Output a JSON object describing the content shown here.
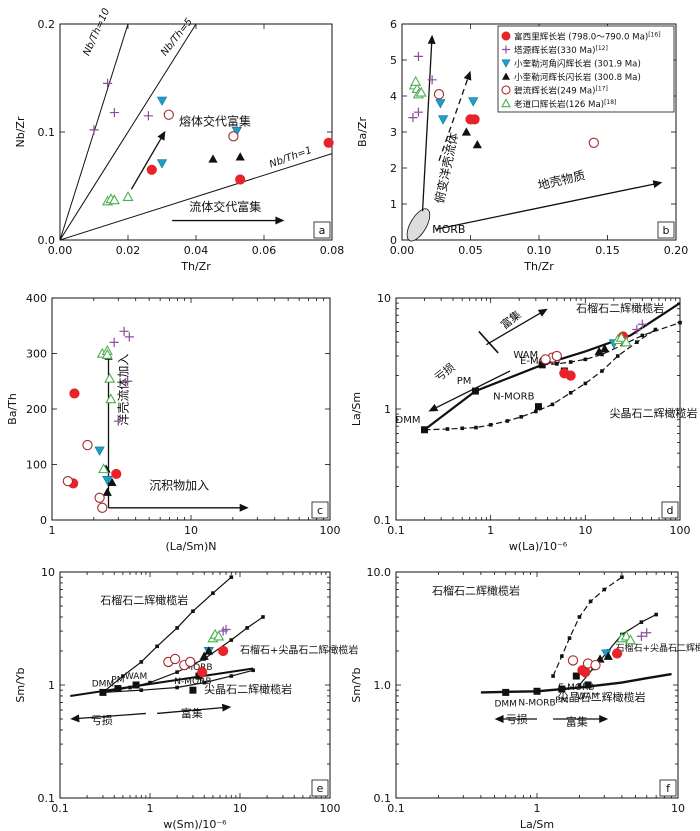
{
  "legend": [
    {
      "key": "fuxili",
      "label": "富西里辉长岩 (798.0～790.0 Ma)",
      "ref": "[16]",
      "marker": "circle-filled",
      "color": "#e8232a"
    },
    {
      "key": "tayuan",
      "label": "塔源辉长岩(330 Ma)",
      "ref": "[12]",
      "marker": "plus",
      "color": "#8a4f9e"
    },
    {
      "key": "xkle_horn",
      "label": "小奎勒河角闪辉长岩 (301.9 Ma)",
      "ref": "",
      "marker": "tri-down",
      "color": "#1ba1c9"
    },
    {
      "key": "xkle_gab",
      "label": "小奎勒河辉长闪长岩 (300.8 Ma)",
      "ref": "",
      "marker": "tri-up",
      "color": "#111111"
    },
    {
      "key": "biliu",
      "label": "碧流辉长岩(249 Ma)",
      "ref": "[17]",
      "marker": "circle-open",
      "color": "#a52a2a"
    },
    {
      "key": "laodao",
      "label": "老道口辉长岩(126 Ma)",
      "ref": "[18]",
      "marker": "tri-up-open",
      "color": "#4caf50"
    }
  ],
  "chart_data": [
    {
      "id": "a",
      "panel_label": "a",
      "type": "scatter",
      "xlabel": "Th/Zr",
      "ylabel": "Nb/Zr",
      "xlim": [
        0,
        0.08
      ],
      "ylim": [
        0,
        0.2
      ],
      "xticks": [
        "0.00",
        "0.02",
        "0.04",
        "0.06",
        "0.08"
      ],
      "yticks": [
        "0.0",
        "0.1",
        "0.2"
      ],
      "lines": [
        {
          "label": "Nb/Th=10",
          "slope": 10
        },
        {
          "label": "Nb/Th=5",
          "slope": 5
        },
        {
          "label": "Nb/Th=1",
          "slope": 1
        }
      ],
      "annotations": [
        {
          "text": "熔体交代富集"
        },
        {
          "text": "流体交代富集"
        }
      ],
      "points": {
        "fuxili": [
          [
            0.027,
            0.065
          ],
          [
            0.053,
            0.056
          ],
          [
            0.079,
            0.09
          ]
        ],
        "tayuan": [
          [
            0.01,
            0.102
          ],
          [
            0.014,
            0.145
          ],
          [
            0.016,
            0.118
          ],
          [
            0.026,
            0.115
          ]
        ],
        "xkle_horn": [
          [
            0.03,
            0.129
          ],
          [
            0.03,
            0.071
          ],
          [
            0.052,
            0.101
          ]
        ],
        "xkle_gab": [
          [
            0.045,
            0.075
          ],
          [
            0.053,
            0.077
          ]
        ],
        "biliu": [
          [
            0.032,
            0.116
          ],
          [
            0.051,
            0.096
          ]
        ],
        "laodao": [
          [
            0.014,
            0.036
          ],
          [
            0.015,
            0.038
          ],
          [
            0.016,
            0.037
          ],
          [
            0.02,
            0.04
          ]
        ]
      }
    },
    {
      "id": "b",
      "panel_label": "b",
      "type": "scatter",
      "xlabel": "Th/Zr",
      "ylabel": "Ba/Zr",
      "xlim": [
        0,
        0.2
      ],
      "ylim": [
        0,
        6
      ],
      "xticks": [
        "0.00",
        "0.05",
        "0.10",
        "0.15",
        "0.20"
      ],
      "yticks": [
        "0",
        "1",
        "2",
        "3",
        "4",
        "5",
        "6"
      ],
      "annotations": [
        {
          "text": "俯变洋壳流体"
        },
        {
          "text": "地壳物质"
        },
        {
          "text": "MORB"
        }
      ],
      "points": {
        "fuxili": [
          [
            0.05,
            3.35
          ],
          [
            0.053,
            3.35
          ]
        ],
        "tayuan": [
          [
            0.012,
            5.1
          ],
          [
            0.022,
            4.45
          ],
          [
            0.008,
            3.4
          ],
          [
            0.012,
            3.55
          ]
        ],
        "xkle_horn": [
          [
            0.028,
            3.8
          ],
          [
            0.03,
            3.35
          ],
          [
            0.052,
            3.85
          ]
        ],
        "xkle_gab": [
          [
            0.047,
            3.0
          ],
          [
            0.055,
            2.65
          ]
        ],
        "biliu": [
          [
            0.027,
            4.05
          ],
          [
            0.14,
            2.7
          ]
        ],
        "laodao": [
          [
            0.009,
            4.3
          ],
          [
            0.011,
            4.2
          ],
          [
            0.012,
            4.05
          ],
          [
            0.014,
            4.1
          ],
          [
            0.01,
            4.4
          ]
        ]
      }
    },
    {
      "id": "c",
      "panel_label": "c",
      "type": "scatter",
      "xlabel": "(La/Sm)N",
      "ylabel": "Ba/Th",
      "xlog": true,
      "xlim": [
        1,
        100
      ],
      "ylim": [
        0,
        400
      ],
      "xticks": [
        "1",
        "10",
        "100"
      ],
      "yticks": [
        "0",
        "100",
        "200",
        "300",
        "400"
      ],
      "annotations": [
        {
          "text": "洋壳流体加入"
        },
        {
          "text": "沉积物加入"
        }
      ],
      "points": {
        "fuxili": [
          [
            1.45,
            228
          ],
          [
            1.42,
            66
          ],
          [
            2.9,
            83
          ]
        ],
        "tayuan": [
          [
            3.3,
            340
          ],
          [
            3.6,
            330
          ],
          [
            2.8,
            320
          ],
          [
            3.5,
            250
          ],
          [
            3.0,
            178
          ]
        ],
        "xkle_horn": [
          [
            2.2,
            125
          ],
          [
            2.5,
            72
          ]
        ],
        "xkle_gab": [
          [
            2.5,
            50
          ],
          [
            2.7,
            68
          ],
          [
            2.45,
            92
          ]
        ],
        "biliu": [
          [
            1.3,
            70
          ],
          [
            1.8,
            135
          ],
          [
            2.2,
            40
          ],
          [
            2.3,
            22
          ]
        ],
        "laodao": [
          [
            2.3,
            300
          ],
          [
            2.5,
            305
          ],
          [
            2.5,
            298
          ],
          [
            2.6,
            255
          ],
          [
            2.65,
            218
          ],
          [
            2.35,
            92
          ]
        ]
      }
    },
    {
      "id": "d",
      "panel_label": "d",
      "type": "line",
      "xlabel": "w(La)/10⁻⁶",
      "ylabel": "La/Sm",
      "xlog": true,
      "ylog": true,
      "xlim": [
        0.1,
        100
      ],
      "ylim": [
        0.1,
        10
      ],
      "xticks": [
        "0.1",
        "1",
        "10",
        "100"
      ],
      "yticks": [
        "0.1",
        "1",
        "10"
      ],
      "reference_points": [
        {
          "label": "DMM",
          "x": 0.2,
          "y": 0.65
        },
        {
          "label": "PM",
          "x": 0.69,
          "y": 1.45
        },
        {
          "label": "WAM",
          "x": 3.5,
          "y": 2.5
        },
        {
          "label": "E-MORB",
          "x": 6.0,
          "y": 2.2
        },
        {
          "label": "N-MORB",
          "x": 3.2,
          "y": 1.05
        }
      ],
      "series": [
        {
          "name": "石榴石二辉橄榄岩 melting",
          "x": [
            0.2,
            0.35,
            0.5,
            0.7,
            1.0,
            1.5,
            2.1,
            3.0,
            4.5,
            7.0,
            10.0,
            15.0,
            22.0,
            35.0,
            55.0
          ],
          "y": [
            0.65,
            0.66,
            0.67,
            0.68,
            0.72,
            0.78,
            0.85,
            0.95,
            1.1,
            1.4,
            1.7,
            2.2,
            3.0,
            4.0,
            5.2
          ]
        },
        {
          "name": "尖晶石二辉橄榄岩 melting",
          "x": [
            3.5,
            5.0,
            7.0,
            10.0,
            15.0,
            25.0,
            40.0,
            100.0
          ],
          "y": [
            2.5,
            2.55,
            2.65,
            2.8,
            3.1,
            3.8,
            4.6,
            6.0
          ]
        },
        {
          "name": "WAM trend",
          "x": [
            0.2,
            0.69,
            3.5,
            10.0,
            30.0,
            100.0
          ],
          "y": [
            0.65,
            1.45,
            2.5,
            3.3,
            4.6,
            9.0
          ]
        }
      ],
      "annotations": [
        {
          "text": "亏损"
        },
        {
          "text": "富集"
        },
        {
          "text": "石榴石二辉橄榄岩"
        },
        {
          "text": "尖晶石二辉橄榄岩"
        }
      ],
      "points": {
        "fuxili": [
          [
            6.0,
            2.1
          ],
          [
            7.0,
            2.0
          ],
          [
            25.0,
            4.5
          ]
        ],
        "tayuan": [
          [
            35.0,
            5.2
          ],
          [
            40.0,
            5.8
          ]
        ],
        "xkle_horn": [
          [
            20.0,
            3.9
          ]
        ],
        "xkle_gab": [
          [
            14.0,
            3.3
          ],
          [
            16.0,
            3.5
          ]
        ],
        "biliu": [
          [
            4.5,
            2.9
          ],
          [
            5.0,
            3.0
          ],
          [
            3.8,
            2.8
          ]
        ],
        "laodao": [
          [
            22.0,
            4.2
          ],
          [
            24.0,
            4.4
          ],
          [
            27.0,
            4.0
          ]
        ]
      }
    },
    {
      "id": "e",
      "panel_label": "e",
      "type": "line",
      "xlabel": "w(Sm)/10⁻⁶",
      "ylabel": "Sm/Yb",
      "xlog": true,
      "ylog": true,
      "xlim": [
        0.1,
        100
      ],
      "ylim": [
        0.1,
        10
      ],
      "xticks": [
        "0.1",
        "1",
        "10",
        "100"
      ],
      "yticks": [
        "0.1",
        "1",
        "10"
      ],
      "reference_points": [
        {
          "label": "DMM",
          "x": 0.3,
          "y": 0.86
        },
        {
          "label": "PM",
          "x": 0.44,
          "y": 0.93
        },
        {
          "label": "WAM",
          "x": 0.7,
          "y": 1.0
        },
        {
          "label": "N-MORB",
          "x": 3.0,
          "y": 0.9
        },
        {
          "label": "MORB",
          "x": 3.5,
          "y": 1.2
        }
      ],
      "series": [
        {
          "name": "石榴石二辉橄榄岩 melting",
          "x": [
            0.3,
            0.5,
            0.8,
            1.2,
            2.0,
            3.0,
            5.0,
            8.0
          ],
          "y": [
            0.86,
            1.2,
            1.6,
            2.2,
            3.2,
            4.5,
            6.5,
            9.0
          ]
        },
        {
          "name": "石榴石+尖晶石二辉橄榄岩 melting",
          "x": [
            0.3,
            0.6,
            1.0,
            2.0,
            4.0,
            8.0,
            12.0,
            18.0
          ],
          "y": [
            0.86,
            0.95,
            1.05,
            1.3,
            1.7,
            2.5,
            3.2,
            4.0
          ]
        },
        {
          "name": "尖晶石二辉橄榄岩 melting",
          "x": [
            0.3,
            0.8,
            2.0,
            4.0,
            8.0,
            14.0
          ],
          "y": [
            0.86,
            0.9,
            0.95,
            1.05,
            1.2,
            1.35
          ]
        }
      ],
      "annotations": [
        {
          "text": "亏损"
        },
        {
          "text": "富集"
        },
        {
          "text": "石榴石二辉橄榄岩"
        },
        {
          "text": "石榴石+尖晶石二辉橄榄岩"
        },
        {
          "text": "尖晶石二辉橄榄岩"
        }
      ],
      "points": {
        "fuxili": [
          [
            3.8,
            1.3
          ],
          [
            6.5,
            2.0
          ]
        ],
        "tayuan": [
          [
            6.5,
            3.0
          ],
          [
            7.0,
            3.1
          ]
        ],
        "xkle_horn": [
          [
            4.5,
            2.0
          ]
        ],
        "xkle_gab": [
          [
            4.0,
            1.8
          ],
          [
            4.5,
            2.0
          ]
        ],
        "biliu": [
          [
            1.6,
            1.6
          ],
          [
            1.9,
            1.7
          ],
          [
            2.4,
            1.5
          ],
          [
            2.8,
            1.6
          ]
        ],
        "laodao": [
          [
            5.0,
            2.6
          ],
          [
            5.3,
            2.8
          ],
          [
            5.8,
            2.7
          ]
        ]
      }
    },
    {
      "id": "f",
      "panel_label": "f",
      "type": "line",
      "xlabel": "La/Sm",
      "ylabel": "Sm/Yb",
      "xlog": true,
      "ylog": true,
      "xlim": [
        0.1,
        10
      ],
      "ylim": [
        0.1,
        10
      ],
      "xticks": [
        "0.1",
        "1",
        "10"
      ],
      "yticks": [
        "0.1",
        "1.0",
        "10.0"
      ],
      "reference_points": [
        {
          "label": "DMM",
          "x": 0.6,
          "y": 0.86
        },
        {
          "label": "N-MORB",
          "x": 1.0,
          "y": 0.88
        },
        {
          "label": "PM",
          "x": 1.5,
          "y": 0.92
        },
        {
          "label": "WAM",
          "x": 2.3,
          "y": 1.0
        },
        {
          "label": "E-MORB",
          "x": 1.9,
          "y": 1.2
        }
      ],
      "series": [
        {
          "name": "石榴石二辉橄榄岩 melting",
          "x": [
            1.3,
            1.5,
            1.7,
            2.0,
            2.4,
            3.0,
            4.0
          ],
          "y": [
            1.2,
            1.8,
            2.6,
            4.0,
            5.5,
            7.0,
            9.0
          ]
        },
        {
          "name": "石榴石+尖晶石二辉橄榄岩 melting",
          "x": [
            2.0,
            2.5,
            3.2,
            4.0,
            5.5,
            7.0
          ],
          "y": [
            1.0,
            1.4,
            2.0,
            2.8,
            3.6,
            4.2
          ]
        },
        {
          "name": "尖晶石二辉橄榄岩 melting",
          "x": [
            0.4,
            1.0,
            2.0,
            4.0,
            6.0,
            9.0
          ],
          "y": [
            0.86,
            0.88,
            0.95,
            1.05,
            1.15,
            1.25
          ]
        }
      ],
      "annotations": [
        {
          "text": "亏损"
        },
        {
          "text": "富集"
        },
        {
          "text": "石榴石二辉橄榄岩"
        },
        {
          "text": "石榴石+尖晶石二辉橄榄岩"
        },
        {
          "text": "尖晶石二辉橄榄岩"
        }
      ],
      "points": {
        "fuxili": [
          [
            2.1,
            1.35
          ],
          [
            2.2,
            1.3
          ],
          [
            3.7,
            1.9
          ]
        ],
        "tayuan": [
          [
            5.5,
            2.7
          ],
          [
            6.0,
            2.9
          ]
        ],
        "xkle_horn": [
          [
            3.1,
            1.9
          ]
        ],
        "xkle_gab": [
          [
            2.8,
            1.7
          ],
          [
            3.2,
            1.8
          ]
        ],
        "biliu": [
          [
            2.3,
            1.55
          ],
          [
            2.6,
            1.5
          ],
          [
            1.8,
            1.65
          ]
        ],
        "laodao": [
          [
            4.0,
            2.6
          ],
          [
            4.3,
            2.7
          ],
          [
            4.6,
            2.5
          ]
        ]
      }
    }
  ]
}
